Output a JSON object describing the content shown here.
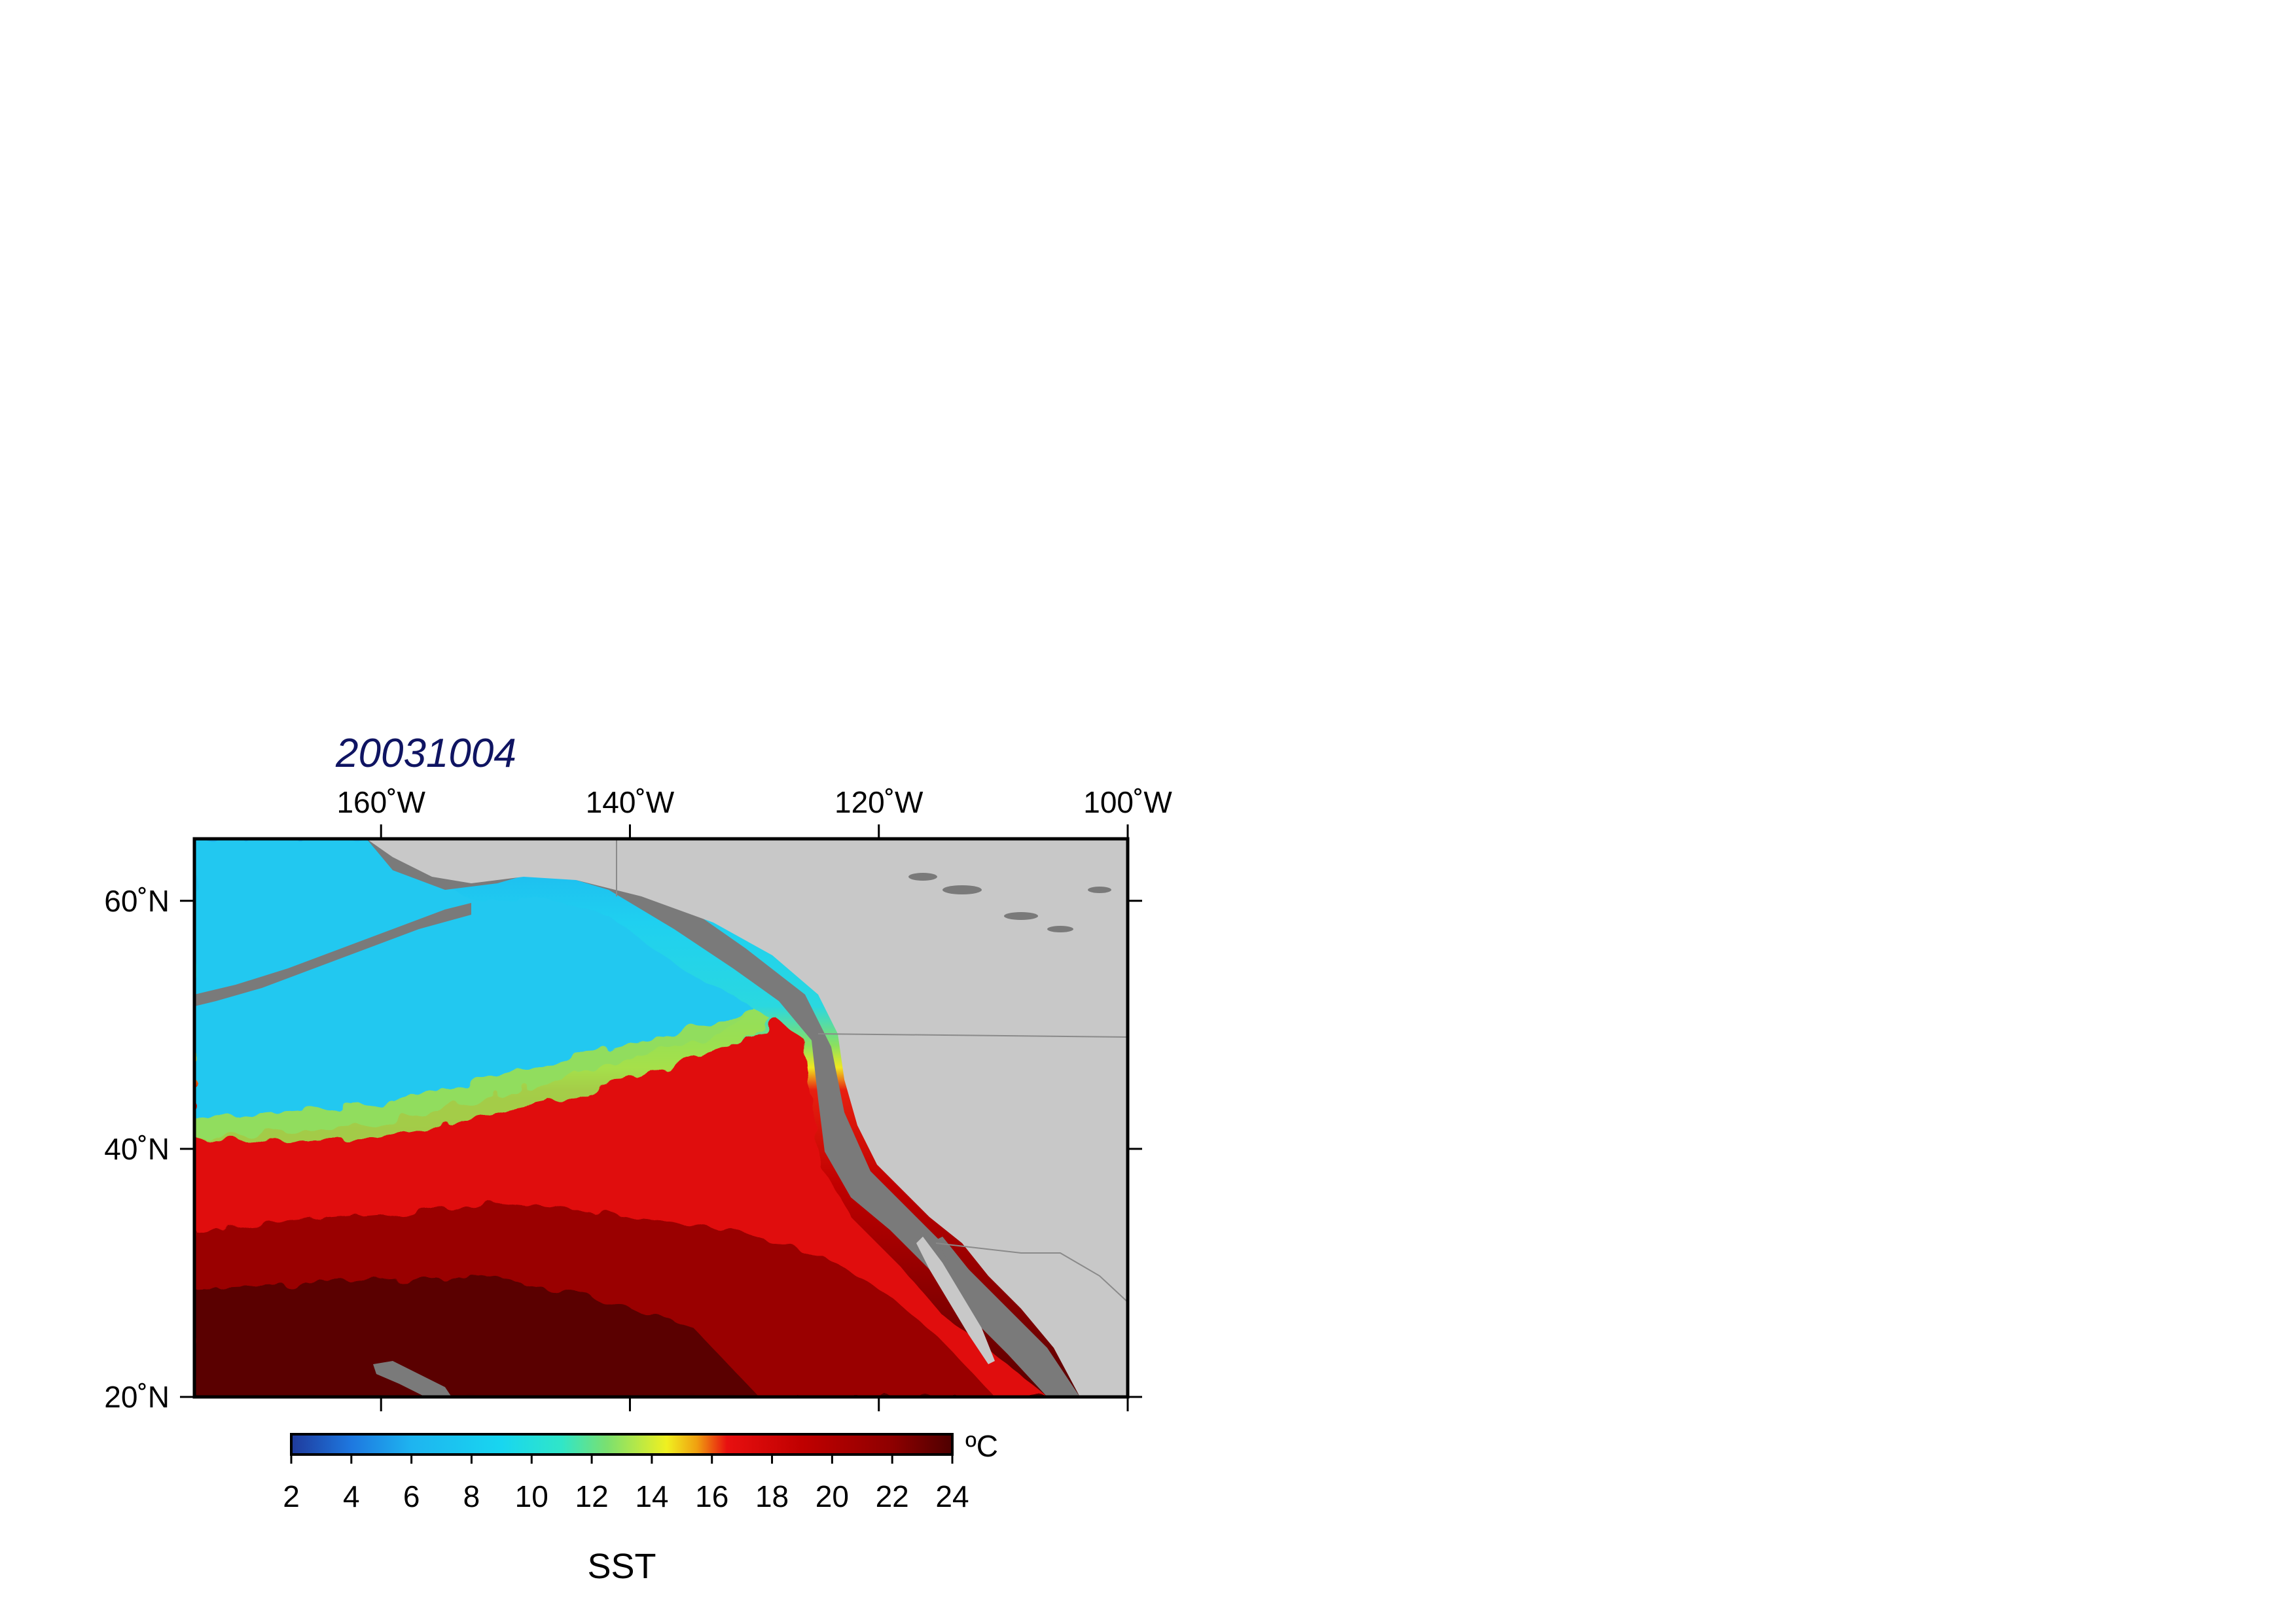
{
  "title": "20031004",
  "longitude_ticks": [
    {
      "value": -160,
      "label": "160˚W"
    },
    {
      "value": -140,
      "label": "140˚W"
    },
    {
      "value": -120,
      "label": "120˚W"
    },
    {
      "value": -100,
      "label": "100˚W"
    }
  ],
  "latitude_ticks": [
    {
      "value": 60,
      "label": "60˚N"
    },
    {
      "value": 40,
      "label": "40˚N"
    },
    {
      "value": 20,
      "label": "20˚N"
    }
  ],
  "map_extent": {
    "lon_min": -175,
    "lon_max": -100,
    "lat_min": 20,
    "lat_max": 65
  },
  "colorbar": {
    "variable": "SST",
    "unit": "ºC",
    "min": 2,
    "max": 24,
    "tick_labels": [
      "2",
      "4",
      "6",
      "8",
      "10",
      "12",
      "14",
      "16",
      "18",
      "20",
      "22",
      "24"
    ],
    "stops": [
      {
        "value": 2,
        "color": "#1f3a9c"
      },
      {
        "value": 4,
        "color": "#1e78e0"
      },
      {
        "value": 6,
        "color": "#1eb4f0"
      },
      {
        "value": 9,
        "color": "#18d6f0"
      },
      {
        "value": 11,
        "color": "#30e6c8"
      },
      {
        "value": 12.5,
        "color": "#7ae070"
      },
      {
        "value": 14.5,
        "color": "#f0f020"
      },
      {
        "value": 15.5,
        "color": "#f0a010"
      },
      {
        "value": 16.5,
        "color": "#e81010"
      },
      {
        "value": 19,
        "color": "#c00000"
      },
      {
        "value": 22,
        "color": "#8e0000"
      },
      {
        "value": 24,
        "color": "#4e0000"
      }
    ]
  },
  "colors": {
    "land": "#c8c8c8",
    "shelf": "#7a7a7a",
    "title": "#0f1462"
  }
}
